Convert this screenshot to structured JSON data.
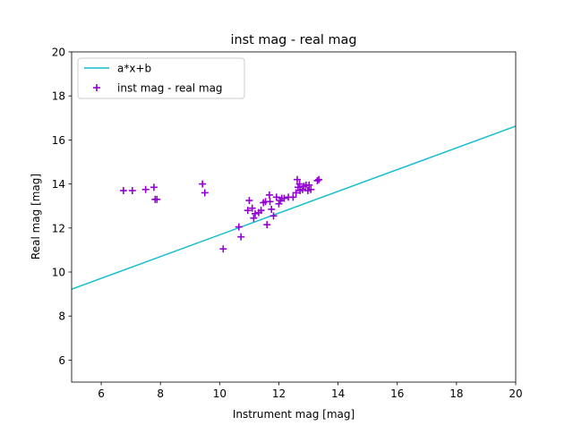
{
  "chart_data": {
    "type": "scatter",
    "title": "inst mag - real mag",
    "xlabel": "Instrument mag [mag]",
    "ylabel": "Real mag [mag]",
    "xlim": [
      5,
      20
    ],
    "ylim": [
      5,
      20
    ],
    "xticks": [
      6,
      8,
      10,
      12,
      14,
      16,
      18,
      20
    ],
    "yticks": [
      6,
      8,
      10,
      12,
      14,
      16,
      18,
      20
    ],
    "grid": false,
    "legend_position": "top-left",
    "series": [
      {
        "name": "a*x+b",
        "kind": "line",
        "color": "#17becf",
        "x": [
          5,
          20
        ],
        "y": [
          9.22,
          16.63
        ]
      },
      {
        "name": "inst mag - real mag",
        "kind": "scatter",
        "marker": "+",
        "color": "#9400d3",
        "x": [
          6.75,
          7.05,
          7.5,
          7.78,
          7.82,
          7.88,
          9.42,
          9.5,
          10.12,
          10.65,
          10.72,
          10.95,
          11.0,
          11.1,
          11.15,
          11.2,
          11.32,
          11.4,
          11.48,
          11.55,
          11.6,
          11.68,
          11.7,
          11.75,
          11.82,
          11.92,
          12.0,
          12.05,
          12.1,
          12.18,
          12.32,
          12.48,
          12.58,
          12.62,
          12.65,
          12.7,
          12.72,
          12.8,
          12.85,
          12.92,
          12.98,
          13.02,
          13.08,
          13.3,
          13.35
        ],
        "y": [
          13.7,
          13.7,
          13.75,
          13.85,
          13.3,
          13.3,
          14.0,
          13.6,
          11.05,
          12.05,
          11.6,
          12.8,
          13.25,
          12.9,
          12.45,
          12.65,
          12.7,
          12.8,
          13.15,
          13.2,
          12.15,
          13.5,
          13.2,
          12.85,
          12.55,
          13.4,
          13.1,
          13.25,
          13.35,
          13.35,
          13.4,
          13.4,
          13.6,
          14.2,
          13.85,
          14.0,
          13.7,
          13.75,
          13.9,
          13.95,
          13.7,
          13.95,
          13.75,
          14.15,
          14.2
        ]
      }
    ]
  }
}
